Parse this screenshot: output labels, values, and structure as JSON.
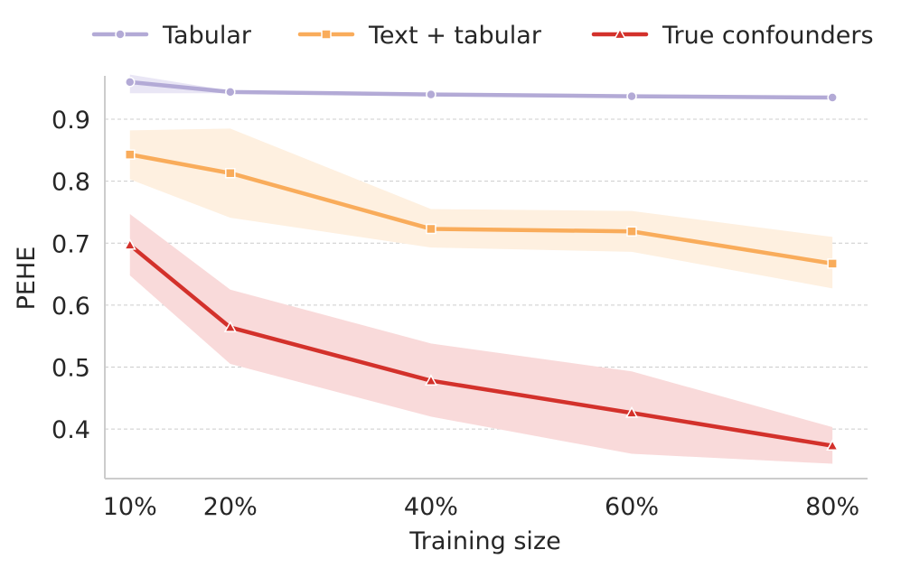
{
  "chart_data": {
    "type": "line",
    "xlabel": "Training size",
    "ylabel": "PEHE",
    "x": [
      10,
      20,
      40,
      60,
      80
    ],
    "x_tick_labels": [
      "10%",
      "20%",
      "40%",
      "60%",
      "80%"
    ],
    "y_ticks": [
      0.4,
      0.5,
      0.6,
      0.7,
      0.8,
      0.9
    ],
    "y_tick_labels": [
      "0.4",
      "0.5",
      "0.6",
      "0.7",
      "0.8",
      "0.9"
    ],
    "xlim": [
      7.5,
      83.5
    ],
    "ylim": [
      0.32,
      0.97
    ],
    "grid": "horizontal-dashed",
    "legend_position": "top",
    "series": [
      {
        "name": "Tabular",
        "marker": "circle",
        "color": "#b3aad6",
        "band_color": "#e9e6f5",
        "values": [
          0.96,
          0.944,
          0.94,
          0.937,
          0.935
        ],
        "lower": [
          0.942,
          0.942,
          0.938,
          0.935,
          0.933
        ],
        "upper": [
          0.972,
          0.946,
          0.941,
          0.938,
          0.936
        ]
      },
      {
        "name": "Text + tabular",
        "marker": "square",
        "color": "#f9ac5b",
        "band_color": "#fef0e0",
        "values": [
          0.843,
          0.813,
          0.723,
          0.719,
          0.667
        ],
        "lower": [
          0.803,
          0.741,
          0.693,
          0.686,
          0.627
        ],
        "upper": [
          0.882,
          0.885,
          0.755,
          0.752,
          0.71
        ]
      },
      {
        "name": "True confounders",
        "marker": "triangle",
        "color": "#d3312b",
        "band_color": "#f9dada",
        "values": [
          0.697,
          0.564,
          0.478,
          0.426,
          0.373
        ],
        "lower": [
          0.648,
          0.505,
          0.42,
          0.36,
          0.344
        ],
        "upper": [
          0.747,
          0.625,
          0.538,
          0.493,
          0.403
        ]
      }
    ]
  }
}
